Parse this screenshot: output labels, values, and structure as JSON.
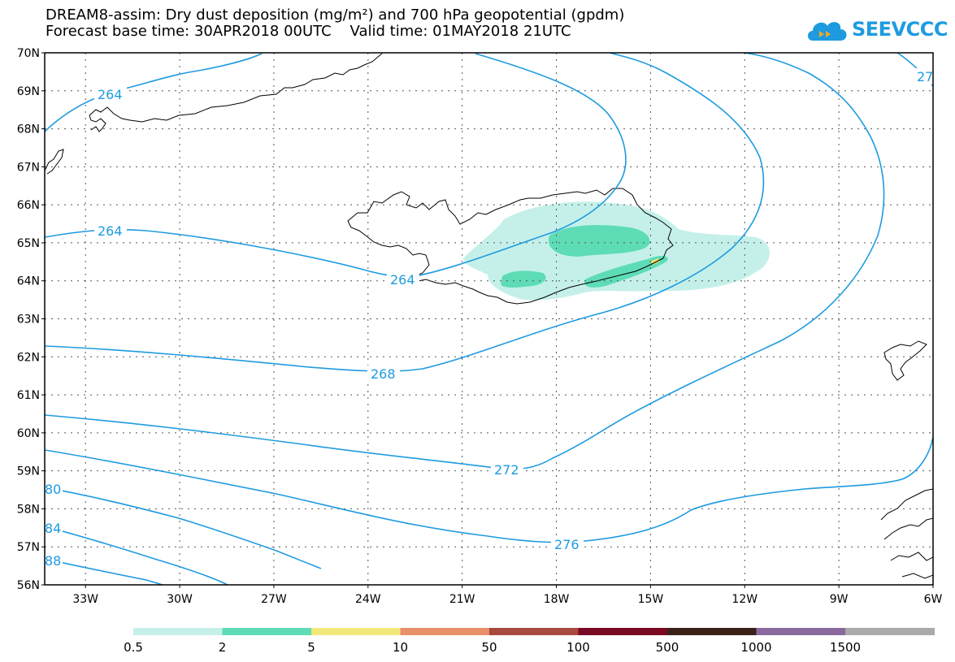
{
  "header": {
    "title_line1": "DREAM8-assim: Dry dust deposition (mg/m²) and 700 hPa geopotential (gpdm)",
    "title_line2": "Forecast base time: 30APR2018 00UTC    Valid time: 01MAY2018 21UTC"
  },
  "logo": {
    "text": "SEEVCCC",
    "icon": "cloud-icon",
    "color": "#1e9be0"
  },
  "map": {
    "lat_range": [
      56,
      70
    ],
    "lon_range": [
      -34.3,
      -6
    ],
    "lat_ticks": [
      "70N",
      "69N",
      "68N",
      "67N",
      "66N",
      "65N",
      "64N",
      "63N",
      "62N",
      "61N",
      "60N",
      "59N",
      "58N",
      "57N",
      "56N"
    ],
    "lon_ticks": [
      "33W",
      "30W",
      "27W",
      "24W",
      "21W",
      "18W",
      "15W",
      "12W",
      "9W",
      "6W"
    ],
    "contour_color": "#1e9be0",
    "contour_labels": [
      "264",
      "264",
      "264",
      "268",
      "272",
      "276",
      "27",
      "80",
      "84",
      "88"
    ],
    "dust_colors": {
      "light": "#c5f0ea",
      "medium": "#5ddcb6",
      "high": "#f0e070"
    }
  },
  "legend": {
    "ticks": [
      "0.5",
      "2",
      "5",
      "10",
      "50",
      "100",
      "500",
      "1000",
      "1500"
    ],
    "colors": [
      "#c5f0ea",
      "#5ddcb6",
      "#f3e87a",
      "#e8906a",
      "#a84a40",
      "#7a0a24",
      "#3a2218",
      "#8a6a9e",
      "#aaaaaa"
    ]
  }
}
